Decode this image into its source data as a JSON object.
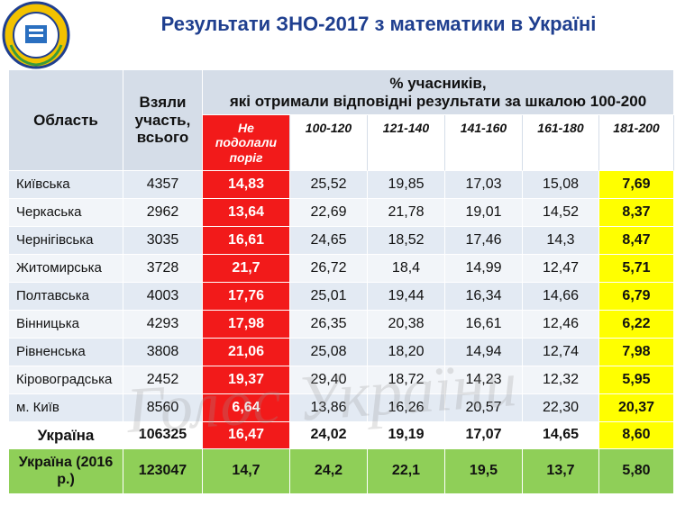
{
  "header": {
    "title": "Результати ЗНО-2017 з математики в Україні"
  },
  "table": {
    "col_headers": [
      "Область",
      "Взяли участь, всього"
    ],
    "group_header": [
      "% учасників,",
      "які отримали відповідні результати за шкалою 100-200"
    ],
    "sub_headers": [
      "Не подолали поріг",
      "100-120",
      "121-140",
      "141-160",
      "161-180",
      "181-200"
    ],
    "rows": [
      [
        "Київська",
        "4357",
        "14,83",
        "25,52",
        "19,85",
        "17,03",
        "15,08",
        "7,69"
      ],
      [
        "Черкаська",
        "2962",
        "13,64",
        "22,69",
        "21,78",
        "19,01",
        "14,52",
        "8,37"
      ],
      [
        "Чернігівська",
        "3035",
        "16,61",
        "24,65",
        "18,52",
        "17,46",
        "14,3",
        "8,47"
      ],
      [
        "Житомирська",
        "3728",
        "21,7",
        "26,72",
        "18,4",
        "14,99",
        "12,47",
        "5,71"
      ],
      [
        "Полтавська",
        "4003",
        "17,76",
        "25,01",
        "19,44",
        "16,34",
        "14,66",
        "6,79"
      ],
      [
        "Вінницька",
        "4293",
        "17,98",
        "26,35",
        "20,38",
        "16,61",
        "12,46",
        "6,22"
      ],
      [
        "Рівненська",
        "3808",
        "21,06",
        "25,08",
        "18,20",
        "14,94",
        "12,74",
        "7,98"
      ],
      [
        "Кіровоградська",
        "2452",
        "19,37",
        "29,40",
        "18,72",
        "14,23",
        "12,32",
        "5,95"
      ],
      [
        "м. Київ",
        "8560",
        "6,64",
        "13,86",
        "16,26",
        "20,57",
        "22,30",
        "20,37"
      ],
      [
        "Україна",
        "106325",
        "16,47",
        "24,02",
        "19,19",
        "17,07",
        "14,65",
        "8,60"
      ],
      [
        "Україна (2016 р.)",
        "123047",
        "14,7",
        "24,2",
        "22,1",
        "19,5",
        "13,7",
        "5,80"
      ]
    ]
  },
  "watermark": "Голос України"
}
